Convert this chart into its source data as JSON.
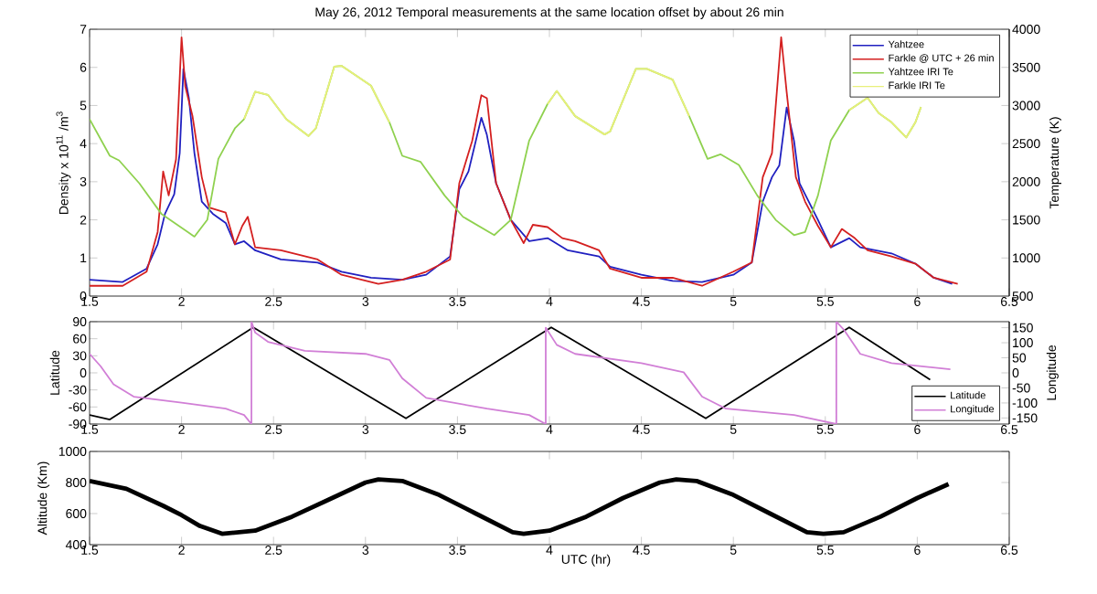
{
  "chart_data": [
    {
      "type": "line",
      "title": "May 26, 2012 Temporal measurements at the same location offset by about 26 min",
      "ylabel": "Density x 10$^{11}$ /m$^{3}$",
      "y2label": "Temperature (K)",
      "xlim": [
        1.5,
        6.5
      ],
      "xticks": [
        1.5,
        2,
        2.5,
        3,
        3.5,
        4,
        4.5,
        5,
        5.5,
        6,
        6.5
      ],
      "ylim": [
        0,
        7
      ],
      "yticks": [
        0,
        1,
        2,
        3,
        4,
        5,
        6,
        7
      ],
      "y2lim": [
        500,
        4000
      ],
      "y2ticks": [
        500,
        1000,
        1500,
        2000,
        2500,
        3000,
        3500,
        4000
      ],
      "legend": "top right",
      "series": [
        {
          "name": "Yahtzee",
          "color": "#2020c0",
          "x": [
            1.5,
            1.68,
            1.81,
            1.87,
            1.91,
            1.96,
            1.99,
            2.01,
            2.04,
            2.07,
            2.11,
            2.17,
            2.24,
            2.29,
            2.34,
            2.4,
            2.54,
            2.74,
            2.87,
            3.03,
            3.2,
            3.33,
            3.46,
            3.51,
            3.56,
            3.63,
            3.66,
            3.71,
            3.79,
            3.89,
            3.99,
            4.1,
            4.27,
            4.33,
            4.5,
            4.67,
            4.83,
            5.0,
            5.1,
            5.16,
            5.21,
            5.25,
            5.29,
            5.33,
            5.36,
            5.46,
            5.53,
            5.63,
            5.69,
            5.86,
            5.99,
            6.09,
            6.19
          ],
          "values": [
            0.43,
            0.37,
            0.72,
            1.36,
            2.16,
            2.67,
            3.75,
            5.96,
            5.19,
            3.75,
            2.48,
            2.16,
            1.92,
            1.36,
            1.44,
            1.2,
            0.96,
            0.88,
            0.64,
            0.48,
            0.43,
            0.56,
            1.04,
            2.8,
            3.27,
            4.68,
            4.23,
            2.96,
            2.0,
            1.44,
            1.52,
            1.2,
            1.04,
            0.77,
            0.56,
            0.4,
            0.37,
            0.56,
            0.88,
            2.48,
            3.12,
            3.43,
            4.95,
            4.07,
            2.96,
            2.0,
            1.28,
            1.52,
            1.28,
            1.12,
            0.85,
            0.48,
            0.32
          ]
        },
        {
          "name": "Farkle @ UTC + 26 min",
          "color": "#d42020",
          "x": [
            1.5,
            1.68,
            1.81,
            1.87,
            1.9,
            1.93,
            1.97,
            2.0,
            2.02,
            2.06,
            2.11,
            2.15,
            2.24,
            2.29,
            2.33,
            2.36,
            2.4,
            2.54,
            2.74,
            2.87,
            3.07,
            3.2,
            3.33,
            3.46,
            3.51,
            3.58,
            3.63,
            3.66,
            3.71,
            3.79,
            3.86,
            3.91,
            3.99,
            4.07,
            4.14,
            4.27,
            4.33,
            4.5,
            4.67,
            4.83,
            5.0,
            5.1,
            5.16,
            5.21,
            5.26,
            5.29,
            5.34,
            5.39,
            5.46,
            5.53,
            5.59,
            5.66,
            5.73,
            5.86,
            5.99,
            6.09,
            6.22
          ],
          "values": [
            0.27,
            0.27,
            0.64,
            1.68,
            3.27,
            2.64,
            3.59,
            6.79,
            5.51,
            4.71,
            3.12,
            2.32,
            2.19,
            1.36,
            1.84,
            2.08,
            1.28,
            1.2,
            0.96,
            0.56,
            0.32,
            0.43,
            0.64,
            0.96,
            2.96,
            4.07,
            5.27,
            5.19,
            2.96,
            2.0,
            1.39,
            1.87,
            1.81,
            1.52,
            1.44,
            1.2,
            0.72,
            0.48,
            0.48,
            0.27,
            0.64,
            0.88,
            3.12,
            3.75,
            6.79,
            5.35,
            3.12,
            2.48,
            1.84,
            1.28,
            1.76,
            1.52,
            1.2,
            1.04,
            0.85,
            0.48,
            0.32
          ]
        },
        {
          "name": "Yahtzee IRI Te",
          "color": "#8fd14f",
          "axis": "y2",
          "x": [
            1.5,
            1.61,
            1.66,
            1.77,
            1.89,
            2.07,
            2.14,
            2.2,
            2.29,
            2.34,
            2.4,
            2.47,
            2.57,
            2.69,
            2.73,
            2.83,
            2.87,
            3.03,
            3.13,
            3.2,
            3.3,
            3.43,
            3.53,
            3.7,
            3.79,
            3.89,
            3.99,
            4.04,
            4.14,
            4.3,
            4.33,
            4.47,
            4.53,
            4.67,
            4.76,
            4.86,
            4.93,
            5.03,
            5.13,
            5.23,
            5.33,
            5.39,
            5.46,
            5.53,
            5.63,
            5.73,
            5.79,
            5.86,
            5.94,
            5.99,
            6.02
          ],
          "values": [
            2820,
            2340,
            2280,
            1980,
            1580,
            1280,
            1500,
            2300,
            2700,
            2820,
            3180,
            3140,
            2820,
            2600,
            2700,
            3510,
            3520,
            3260,
            2780,
            2340,
            2260,
            1820,
            1540,
            1300,
            1500,
            2540,
            3020,
            3190,
            2860,
            2620,
            2660,
            3480,
            3480,
            3340,
            2860,
            2300,
            2360,
            2220,
            1820,
            1500,
            1300,
            1340,
            1820,
            2540,
            2940,
            3100,
            2900,
            2780,
            2580,
            2780,
            2980
          ]
        },
        {
          "name": "Farkle IRI Te",
          "color": "#e8f07a",
          "axis": "y2",
          "x": [
            2.34,
            2.4,
            2.47,
            2.57,
            2.69,
            2.73,
            2.83,
            2.87,
            3.03,
            3.13,
            3.5,
            3.99,
            4.04,
            4.14,
            4.3,
            4.33,
            4.47,
            4.53,
            4.67,
            4.76,
            5.2,
            5.63,
            5.73,
            5.79,
            5.86,
            5.94,
            5.99,
            6.02
          ],
          "values": [
            2820,
            3180,
            3140,
            2820,
            2600,
            2700,
            3510,
            3520,
            3260,
            2780,
            null,
            3020,
            3190,
            2860,
            2620,
            2660,
            3480,
            3480,
            3340,
            2860,
            null,
            2940,
            3100,
            2900,
            2780,
            2580,
            2780,
            2980
          ]
        }
      ]
    },
    {
      "type": "line",
      "ylabel": "Latitude",
      "y2label": "Longitude",
      "xlim": [
        1.5,
        6.5
      ],
      "xticks": [
        1.5,
        2,
        2.5,
        3,
        3.5,
        4,
        4.5,
        5,
        5.5,
        6,
        6.5
      ],
      "ylim": [
        -90,
        90
      ],
      "yticks": [
        -90,
        -60,
        -30,
        0,
        30,
        60,
        90
      ],
      "y2lim": [
        -170,
        170
      ],
      "y2ticks": [
        -150,
        -100,
        -50,
        0,
        50,
        100,
        150
      ],
      "legend": "bottom right",
      "series": [
        {
          "name": "Latitude",
          "color": "#000000",
          "x": [
            1.5,
            1.61,
            2.39,
            3.22,
            4.01,
            4.85,
            5.63,
            6.07
          ],
          "values": [
            -74,
            -82,
            80,
            -80,
            80,
            -80,
            80,
            -12
          ]
        },
        {
          "name": "Longitude",
          "color": "#d17fd6",
          "axis": "y2",
          "x": [
            1.5,
            1.56,
            1.63,
            1.74,
            2.0,
            2.24,
            2.34,
            2.38,
            2.38,
            2.4,
            2.47,
            2.67,
            3.0,
            3.13,
            3.2,
            3.33,
            3.66,
            3.89,
            3.98,
            3.98,
            4.04,
            4.14,
            4.5,
            4.73,
            4.83,
            4.96,
            5.33,
            5.56,
            5.56,
            5.6,
            5.69,
            5.86,
            6.18
          ],
          "values": [
            63,
            22,
            -38,
            -79,
            -99,
            -119,
            -140,
            -170,
            170,
            134,
            103,
            73,
            63,
            43,
            -18,
            -83,
            -119,
            -140,
            -170,
            150,
            93,
            63,
            32,
            2,
            -79,
            -119,
            -140,
            -170,
            170,
            144,
            63,
            32,
            12
          ]
        }
      ]
    },
    {
      "type": "line",
      "xlabel": "UTC (hr)",
      "ylabel": "Altitude (Km)",
      "xlim": [
        1.5,
        6.5
      ],
      "xticks": [
        1.5,
        2,
        2.5,
        3,
        3.5,
        4,
        4.5,
        5,
        5.5,
        6,
        6.5
      ],
      "ylim": [
        400,
        1000
      ],
      "yticks": [
        400,
        600,
        800,
        1000
      ],
      "series": [
        {
          "color": "#000000",
          "x": [
            1.5,
            1.7,
            1.9,
            2.0,
            2.1,
            2.22,
            2.4,
            2.6,
            2.8,
            3.0,
            3.07,
            3.2,
            3.4,
            3.6,
            3.8,
            3.86,
            4.0,
            4.2,
            4.4,
            4.6,
            4.69,
            4.8,
            5.0,
            5.2,
            5.4,
            5.49,
            5.6,
            5.8,
            6.0,
            6.17
          ],
          "values": [
            810,
            760,
            650,
            590,
            520,
            470,
            490,
            580,
            690,
            800,
            820,
            810,
            720,
            600,
            480,
            470,
            490,
            580,
            700,
            800,
            820,
            810,
            720,
            600,
            480,
            470,
            480,
            580,
            700,
            790
          ]
        }
      ]
    }
  ]
}
